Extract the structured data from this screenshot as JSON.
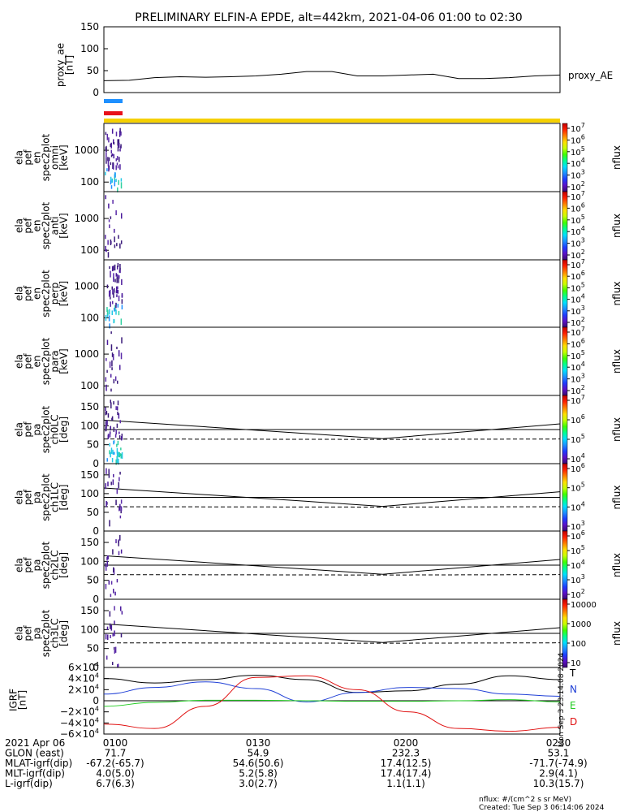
{
  "title": "PRELIMINARY ELFIN-A EPDE, alt=442km, 2021-04-06 01:00 to 02:30",
  "proxy_panel": {
    "ylabel": [
      "proxy_ae",
      "[nT]"
    ],
    "yticks": [
      "150",
      "100",
      "50",
      "0"
    ],
    "legend": "proxy_AE"
  },
  "bars": {
    "blue": "#1e90ff",
    "red": "#e8101a",
    "yellow": "#f5d000"
  },
  "energy_panels": [
    {
      "ylabel": [
        "ela",
        "pef",
        "en",
        "spec2plot",
        "omni",
        "[keV]"
      ],
      "yticks": [
        "1000",
        "100"
      ]
    },
    {
      "ylabel": [
        "ela",
        "pef",
        "en",
        "spec2plot",
        "anti",
        "[keV]"
      ],
      "yticks": [
        "1000",
        "100"
      ]
    },
    {
      "ylabel": [
        "ela",
        "pef",
        "en",
        "spec2plot",
        "perp",
        "[keV]"
      ],
      "yticks": [
        "1000",
        "100"
      ]
    },
    {
      "ylabel": [
        "ela",
        "pef",
        "en",
        "spec2plot",
        "para",
        "[keV]"
      ],
      "yticks": [
        "1000",
        "100"
      ]
    }
  ],
  "pa_panels": [
    {
      "ylabel": [
        "ela",
        "pef",
        "pa",
        "spec2plot",
        "ch0LC",
        "[deg]"
      ],
      "yticks": [
        "150",
        "100",
        "50",
        "0"
      ]
    },
    {
      "ylabel": [
        "ela",
        "pef",
        "pa",
        "spec2plot",
        "ch1LC",
        "[deg]"
      ],
      "yticks": [
        "150",
        "100",
        "50",
        "0"
      ]
    },
    {
      "ylabel": [
        "ela",
        "pef",
        "pa",
        "spec2plot",
        "ch2LC",
        "[deg]"
      ],
      "yticks": [
        "150",
        "100",
        "50",
        "0"
      ]
    },
    {
      "ylabel": [
        "ela",
        "pef",
        "pa",
        "spec2plot",
        "ch3LC",
        "[deg]"
      ],
      "yticks": [
        "150",
        "100",
        "50",
        "0"
      ]
    }
  ],
  "colorbars": [
    {
      "ticks": [
        {
          "m": "10",
          "e": "7"
        },
        {
          "m": "10",
          "e": "6"
        },
        {
          "m": "10",
          "e": "5"
        },
        {
          "m": "10",
          "e": "4"
        },
        {
          "m": "10",
          "e": "3"
        },
        {
          "m": "10",
          "e": "2"
        }
      ],
      "label": "nflux"
    },
    {
      "ticks": [
        {
          "m": "10",
          "e": "7"
        },
        {
          "m": "10",
          "e": "6"
        },
        {
          "m": "10",
          "e": "5"
        },
        {
          "m": "10",
          "e": "4"
        },
        {
          "m": "10",
          "e": "3"
        },
        {
          "m": "10",
          "e": "2"
        }
      ],
      "label": "nflux"
    },
    {
      "ticks": [
        {
          "m": "10",
          "e": "7"
        },
        {
          "m": "10",
          "e": "6"
        },
        {
          "m": "10",
          "e": "5"
        },
        {
          "m": "10",
          "e": "4"
        },
        {
          "m": "10",
          "e": "3"
        },
        {
          "m": "10",
          "e": "2"
        }
      ],
      "label": "nflux"
    },
    {
      "ticks": [
        {
          "m": "10",
          "e": "7"
        },
        {
          "m": "10",
          "e": "6"
        },
        {
          "m": "10",
          "e": "5"
        },
        {
          "m": "10",
          "e": "4"
        },
        {
          "m": "10",
          "e": "3"
        },
        {
          "m": "10",
          "e": "2"
        }
      ],
      "label": "nflux"
    },
    {
      "ticks": [
        {
          "m": "10",
          "e": "7"
        },
        {
          "m": "10",
          "e": "6"
        },
        {
          "m": "10",
          "e": "5"
        },
        {
          "m": "10",
          "e": "4"
        }
      ],
      "label": "nflux"
    },
    {
      "ticks": [
        {
          "m": "10",
          "e": "6"
        },
        {
          "m": "10",
          "e": "5"
        },
        {
          "m": "10",
          "e": "4"
        },
        {
          "m": "10",
          "e": "3"
        }
      ],
      "label": "nflux"
    },
    {
      "ticks": [
        {
          "m": "10",
          "e": "6"
        },
        {
          "m": "10",
          "e": "5"
        },
        {
          "m": "10",
          "e": "4"
        },
        {
          "m": "10",
          "e": "3"
        },
        {
          "m": "10",
          "e": "2"
        }
      ],
      "label": "nflux"
    },
    {
      "ticks": [
        {
          "m": "10000",
          "e": ""
        },
        {
          "m": "1000",
          "e": ""
        },
        {
          "m": "100",
          "e": ""
        },
        {
          "m": "10",
          "e": ""
        }
      ],
      "label": "nflux"
    }
  ],
  "igrf_panel": {
    "ylabel": [
      "IGRF",
      "[nT]"
    ],
    "yticks": [
      {
        "m": "6×10",
        "e": "4"
      },
      {
        "m": "4×10",
        "e": "4"
      },
      {
        "m": "2×10",
        "e": "4"
      },
      {
        "m": "0",
        "e": ""
      },
      {
        "m": "−2×10",
        "e": "4"
      },
      {
        "m": "−4×10",
        "e": "4"
      },
      {
        "m": "−6×10",
        "e": "4"
      }
    ],
    "legend": [
      {
        "label": "T",
        "color": "#000000"
      },
      {
        "label": "N",
        "color": "#1f3fd6"
      },
      {
        "label": "E",
        "color": "#22cc22"
      },
      {
        "label": "D",
        "color": "#e01010"
      }
    ],
    "side_text": "Mon Sep 3 23:14:08 2024"
  },
  "ephemeris": {
    "rows": [
      [
        "2021 Apr 06",
        "0100",
        "0130",
        "0200",
        "0230"
      ],
      [
        "GLON (east)",
        "71.7",
        "54.9",
        "232.3",
        "53.1"
      ],
      [
        "MLAT-igrf(dip)",
        "-67.2(-65.7)",
        "54.6(50.6)",
        "17.4(12.5)",
        "-71.7(-74.9)"
      ],
      [
        "MLT-igrf(dip)",
        "4.0(5.0)",
        "5.2(5.8)",
        "17.4(17.4)",
        "2.9(4.1)"
      ],
      [
        "L-igrf(dip)",
        "6.7(6.3)",
        "3.0(2.7)",
        "1.1(1.1)",
        "10.3(15.7)"
      ]
    ]
  },
  "footer": {
    "units": "nflux: #/(cm^2 s sr MeV)",
    "created": "Created: Tue Sep  3 06:14:06 2024"
  },
  "chart_data": {
    "type": "line",
    "title": "PRELIMINARY ELFIN-A EPDE, alt=442km, 2021-04-06 01:00 to 02:30",
    "x_range": [
      "01:00",
      "02:30"
    ],
    "series": [
      {
        "name": "proxy_AE",
        "panel": "proxy_ae",
        "x": [
          "01:00",
          "01:05",
          "01:10",
          "01:15",
          "01:20",
          "01:25",
          "01:30",
          "01:35",
          "01:40",
          "01:45",
          "01:50",
          "01:55",
          "02:00",
          "02:05",
          "02:10",
          "02:15",
          "02:20",
          "02:25",
          "02:30"
        ],
        "values": [
          27,
          28,
          34,
          36,
          35,
          36,
          38,
          42,
          48,
          48,
          38,
          38,
          40,
          42,
          32,
          32,
          34,
          38,
          40
        ]
      },
      {
        "name": "T",
        "panel": "igrf",
        "x_min": [
          0,
          10,
          20,
          30,
          40,
          50,
          60,
          70,
          80,
          90
        ],
        "values": [
          40000,
          32000,
          38000,
          46000,
          38000,
          15000,
          18000,
          30000,
          45000,
          38000
        ]
      },
      {
        "name": "N",
        "panel": "igrf",
        "x_min": [
          0,
          10,
          20,
          30,
          40,
          50,
          60,
          70,
          80,
          90
        ],
        "values": [
          12000,
          24000,
          34000,
          22000,
          -2000,
          15000,
          24000,
          22000,
          12000,
          8000
        ]
      },
      {
        "name": "E",
        "panel": "igrf",
        "x_min": [
          0,
          10,
          20,
          30,
          40,
          50,
          60,
          70,
          80,
          90
        ],
        "values": [
          -10000,
          -3000,
          1000,
          1000,
          0,
          -1000,
          -1000,
          0,
          2000,
          -2000
        ]
      },
      {
        "name": "D",
        "panel": "igrf",
        "x_min": [
          0,
          10,
          20,
          30,
          40,
          50,
          60,
          70,
          80,
          90
        ],
        "values": [
          -42000,
          -50000,
          -10000,
          42000,
          45000,
          20000,
          -20000,
          -50000,
          -55000,
          -48000
        ]
      }
    ],
    "ylim_proxy": [
      0,
      150
    ],
    "ylim_pa": [
      0,
      180
    ],
    "ylim_energy_keV": [
      50,
      7000
    ],
    "ylim_igrf": [
      -60000,
      60000
    ],
    "colorbar_label": "nflux"
  }
}
